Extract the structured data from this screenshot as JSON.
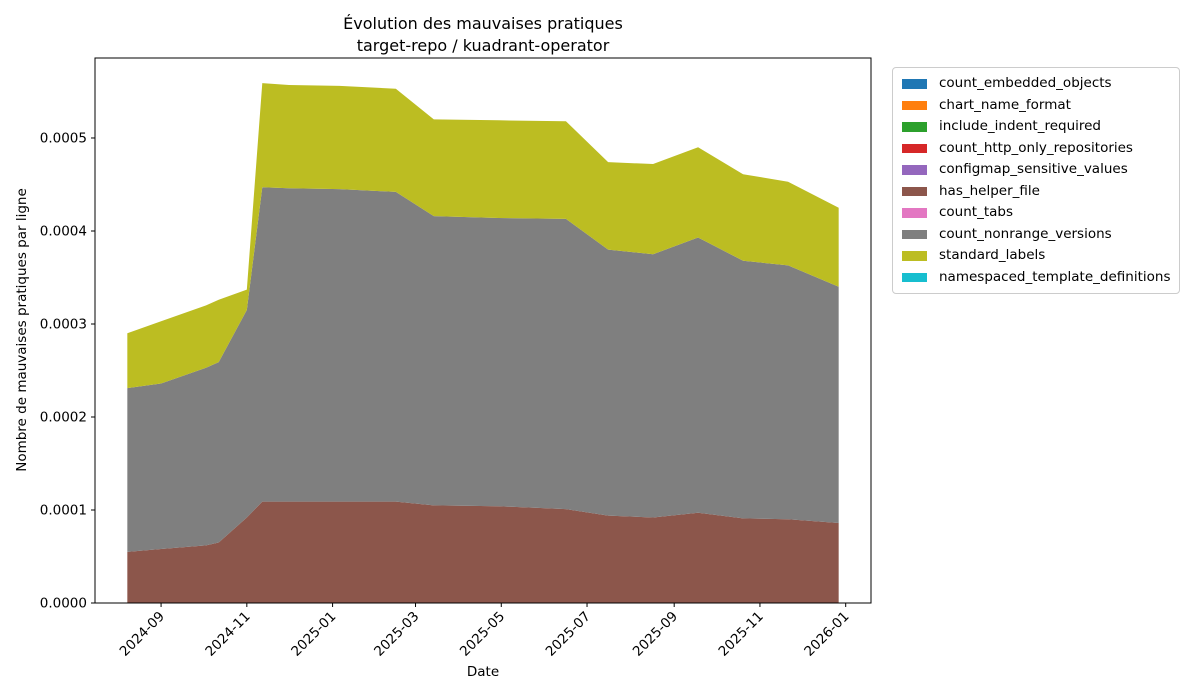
{
  "title": {
    "line1": "Évolution des mauvaises pratiques",
    "line2": "target-repo / kuadrant-operator"
  },
  "axes": {
    "xlabel": "Date",
    "ylabel": "Nombre de mauvaises pratiques par ligne",
    "x_range": [
      "2024-07-16",
      "2026-01-19"
    ],
    "y_ticks": [
      "0.0000",
      "0.0001",
      "0.0002",
      "0.0003",
      "0.0004",
      "0.0005"
    ],
    "x_ticks": [
      {
        "label": "2024-09",
        "date": "2024-09-01"
      },
      {
        "label": "2024-11",
        "date": "2024-11-01"
      },
      {
        "label": "2025-01",
        "date": "2025-01-01"
      },
      {
        "label": "2025-03",
        "date": "2025-03-01"
      },
      {
        "label": "2025-05",
        "date": "2025-05-01"
      },
      {
        "label": "2025-07",
        "date": "2025-07-01"
      },
      {
        "label": "2025-09",
        "date": "2025-09-01"
      },
      {
        "label": "2025-11",
        "date": "2025-11-01"
      },
      {
        "label": "2026-01",
        "date": "2026-01-01"
      }
    ]
  },
  "chart_data": {
    "type": "area",
    "stacked": true,
    "grid": false,
    "legend_position": "upper right, outside plot",
    "title": "Évolution des mauvaises pratiques\ntarget-repo / kuadrant-operator",
    "xlabel": "Date",
    "ylabel": "Nombre de mauvaises pratiques par ligne",
    "ylim": [
      0,
      0.000586
    ],
    "x": [
      "2024-08-08",
      "2024-09-01",
      "2024-10-03",
      "2024-10-12",
      "2024-11-01",
      "2024-11-12",
      "2024-12-01",
      "2025-01-06",
      "2025-02-15",
      "2025-03-14",
      "2025-04-29",
      "2025-06-16",
      "2025-07-16",
      "2025-08-17",
      "2025-09-18",
      "2025-10-20",
      "2025-11-21",
      "2025-12-27"
    ],
    "series": [
      {
        "name": "count_embedded_objects",
        "color": "#1f77b4",
        "values": [
          0,
          0,
          0,
          0,
          0,
          0,
          0,
          0,
          0,
          0,
          0,
          0,
          0,
          0,
          0,
          0,
          0,
          0
        ]
      },
      {
        "name": "chart_name_format",
        "color": "#ff7f0e",
        "values": [
          0,
          0,
          0,
          0,
          0,
          0,
          0,
          0,
          0,
          0,
          0,
          0,
          0,
          0,
          0,
          0,
          0,
          0
        ]
      },
      {
        "name": "include_indent_required",
        "color": "#2ca02c",
        "values": [
          0,
          0,
          0,
          0,
          0,
          0,
          0,
          0,
          0,
          0,
          0,
          0,
          0,
          0,
          0,
          0,
          0,
          0
        ]
      },
      {
        "name": "count_http_only_repositories",
        "color": "#d62728",
        "values": [
          0,
          0,
          0,
          0,
          0,
          0,
          0,
          0,
          0,
          0,
          0,
          0,
          0,
          0,
          0,
          0,
          0,
          0
        ]
      },
      {
        "name": "configmap_sensitive_values",
        "color": "#9467bd",
        "values": [
          0,
          0,
          0,
          0,
          0,
          0,
          0,
          0,
          0,
          0,
          0,
          0,
          0,
          0,
          0,
          0,
          0,
          0
        ]
      },
      {
        "name": "has_helper_file",
        "color": "#8c564b",
        "values": [
          5.5e-05,
          5.8e-05,
          6.2e-05,
          6.5e-05,
          9.2e-05,
          0.000109,
          0.000109,
          0.000109,
          0.000109,
          0.000105,
          0.000104,
          0.000101,
          9.4e-05,
          9.2e-05,
          9.7e-05,
          9.1e-05,
          9e-05,
          8.6e-05
        ]
      },
      {
        "name": "count_tabs",
        "color": "#e377c2",
        "values": [
          0,
          0,
          0,
          0,
          0,
          0,
          0,
          0,
          0,
          0,
          0,
          0,
          0,
          0,
          0,
          0,
          0,
          0
        ]
      },
      {
        "name": "count_nonrange_versions",
        "color": "#7f7f7f",
        "values": [
          0.000176,
          0.000178,
          0.000191,
          0.000194,
          0.000223,
          0.000338,
          0.000337,
          0.000336,
          0.000333,
          0.000311,
          0.00031,
          0.000312,
          0.000286,
          0.000283,
          0.000296,
          0.000277,
          0.000273,
          0.000254
        ]
      },
      {
        "name": "standard_labels",
        "color": "#bcbd22",
        "values": [
          5.9e-05,
          6.7e-05,
          6.7e-05,
          6.7e-05,
          2.2e-05,
          0.000112,
          0.000111,
          0.000111,
          0.000111,
          0.000104,
          0.000105,
          0.000105,
          9.4e-05,
          9.7e-05,
          9.7e-05,
          9.3e-05,
          9e-05,
          8.5e-05
        ]
      },
      {
        "name": "namespaced_template_definitions",
        "color": "#17becf",
        "values": [
          0,
          0,
          0,
          0,
          0,
          0,
          0,
          0,
          0,
          0,
          0,
          0,
          0,
          0,
          0,
          0,
          0,
          0
        ]
      }
    ]
  }
}
